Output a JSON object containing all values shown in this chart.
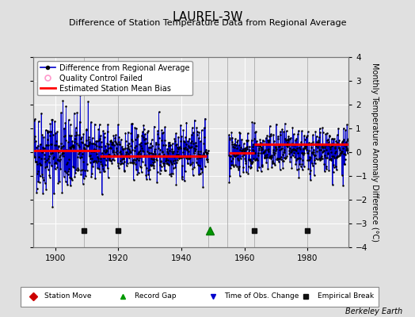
{
  "title": "LAUREL-3W",
  "subtitle": "Difference of Station Temperature Data from Regional Average",
  "ylabel": "Monthly Temperature Anomaly Difference (°C)",
  "xlim": [
    1893,
    1993
  ],
  "ylim": [
    -4,
    4
  ],
  "yticks": [
    -4,
    -3,
    -2,
    -1,
    0,
    1,
    2,
    3,
    4
  ],
  "xticks": [
    1900,
    1920,
    1940,
    1960,
    1980
  ],
  "background_color": "#e0e0e0",
  "plot_bg_color": "#e8e8e8",
  "grid_color": "#ffffff",
  "line_color": "#0000cc",
  "bias_color": "#ff0000",
  "marker_color": "#000000",
  "qc_color": "#ff99cc",
  "seed": 42,
  "gap_start": 1948.5,
  "gap_end": 1954.5,
  "segment1_start": 1893,
  "segment1_end": 1948,
  "segment2_start": 1955,
  "segment2_end": 1993,
  "bias_seg1_start": 1893,
  "bias_seg1_end": 1914,
  "bias_seg1_val": 0.08,
  "bias_seg2_start": 1914,
  "bias_seg2_end": 1948,
  "bias_seg2_val": -0.18,
  "bias_seg3_start": 1955,
  "bias_seg3_end": 1963,
  "bias_seg3_val": -0.03,
  "bias_seg4_start": 1963,
  "bias_seg4_end": 1993,
  "bias_seg4_val": 0.35,
  "empirical_breaks": [
    1909,
    1920,
    1963,
    1980
  ],
  "record_gap_x": 1949,
  "berkeley_earth_text": "Berkeley Earth",
  "title_fontsize": 11,
  "subtitle_fontsize": 8,
  "label_fontsize": 7,
  "tick_fontsize": 7.5,
  "legend_fontsize": 7
}
